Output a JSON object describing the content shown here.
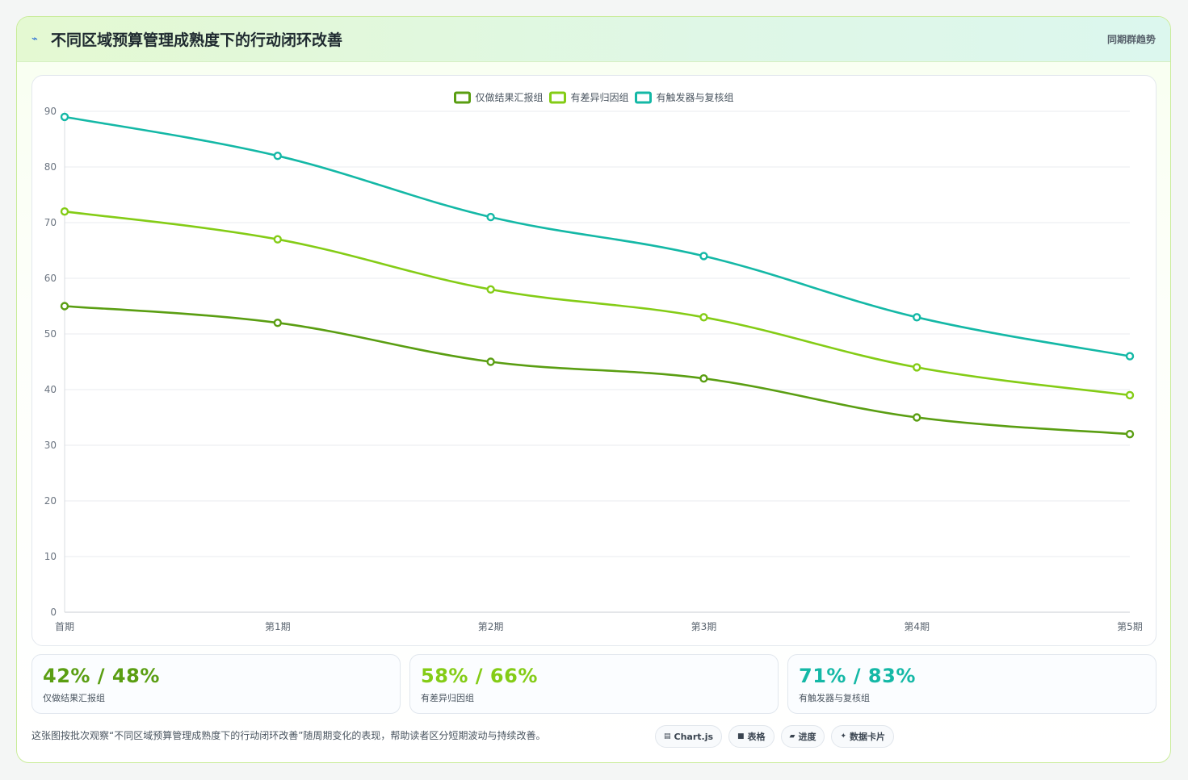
{
  "header": {
    "icon": "pulse-icon",
    "title": "不同区域预算管理成熟度下的行动闭环改善",
    "tag": "同期群趋势"
  },
  "chart_data": {
    "type": "line",
    "categories": [
      "首期",
      "第1期",
      "第2期",
      "第3期",
      "第4期",
      "第5期"
    ],
    "ylim": [
      0,
      90
    ],
    "yticks": [
      0,
      10,
      20,
      30,
      40,
      50,
      60,
      70,
      80,
      90
    ],
    "grid": true,
    "legend": "top-center",
    "series": [
      {
        "name": "仅做结果汇报组",
        "color": "#5a9e12",
        "values": [
          55,
          52,
          45,
          42,
          35,
          32
        ]
      },
      {
        "name": "有差异归因组",
        "color": "#84cc16",
        "values": [
          72,
          67,
          58,
          53,
          44,
          39
        ]
      },
      {
        "name": "有触发器与复核组",
        "color": "#14b8a6",
        "values": [
          89,
          82,
          71,
          64,
          53,
          46
        ]
      }
    ]
  },
  "stats": [
    {
      "value": "42% / 48%",
      "label": "仅做结果汇报组",
      "color": "#5a9e12"
    },
    {
      "value": "58% / 66%",
      "label": "有差异归因组",
      "color": "#84cc16"
    },
    {
      "value": "71% / 83%",
      "label": "有触发器与复核组",
      "color": "#14b8a6"
    }
  ],
  "footer": {
    "note": "这张图按批次观察“不同区域预算管理成熟度下的行动闭环改善”随周期变化的表现，帮助读者区分短期波动与持续改善。",
    "chips": [
      {
        "icon": "chart-icon",
        "glyph": "▤",
        "label": "Chart.js"
      },
      {
        "icon": "table-icon",
        "glyph": "■",
        "label": "表格"
      },
      {
        "icon": "progress-icon",
        "glyph": "▰",
        "label": "进度"
      },
      {
        "icon": "sparkle-icon",
        "glyph": "✦",
        "label": "数据卡片"
      }
    ]
  }
}
